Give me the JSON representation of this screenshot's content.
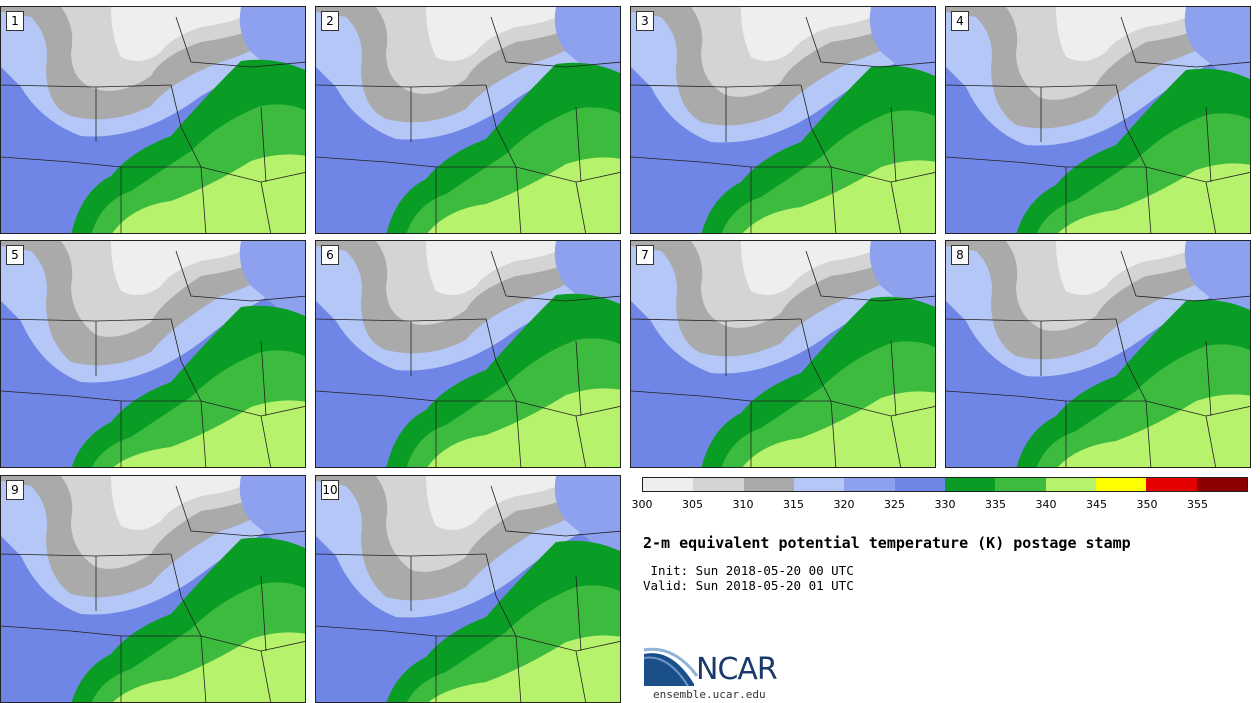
{
  "panels": [
    {
      "label": "1"
    },
    {
      "label": "2"
    },
    {
      "label": "3"
    },
    {
      "label": "4"
    },
    {
      "label": "5"
    },
    {
      "label": "6"
    },
    {
      "label": "7"
    },
    {
      "label": "8"
    },
    {
      "label": "9"
    },
    {
      "label": "10"
    }
  ],
  "legend": {
    "colors": [
      "#eeeeee",
      "#d4d4d4",
      "#aaaaaa",
      "#b5c7f7",
      "#8da1ef",
      "#6f86e6",
      "#0a9d25",
      "#3dbb3f",
      "#b6f26b",
      "#ffff00",
      "#e60000",
      "#8c0000"
    ],
    "ticks": [
      "300",
      "305",
      "310",
      "315",
      "320",
      "325",
      "330",
      "335",
      "340",
      "345",
      "350",
      "355"
    ]
  },
  "title": "2-m equivalent potential temperature (K) postage stamp",
  "init_text": " Init: Sun 2018-05-20 00 UTC",
  "valid_text": "Valid: Sun 2018-05-20 01 UTC",
  "logo": {
    "word": "NCAR",
    "site": "ensemble.ucar.edu",
    "icon": "ncar-logo-icon"
  }
}
